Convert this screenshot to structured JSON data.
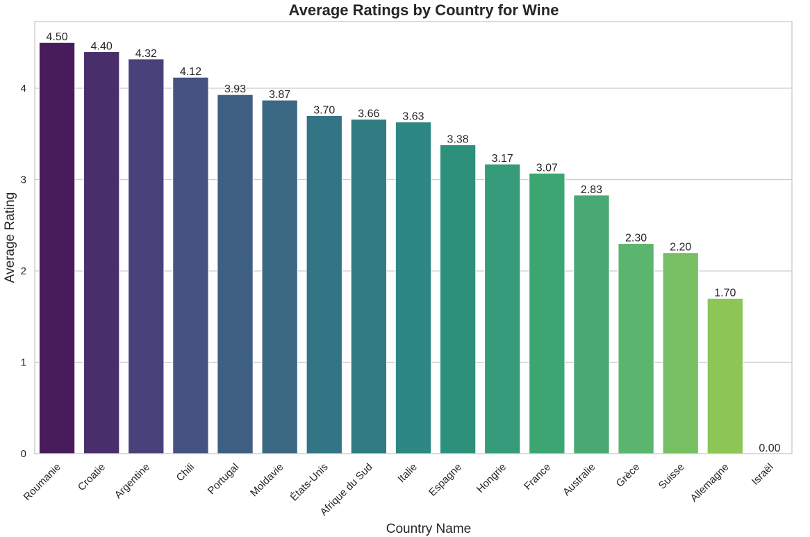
{
  "chart_data": {
    "type": "bar",
    "title": "Average Ratings by Country for Wine",
    "xlabel": "Country Name",
    "ylabel": "Average Rating",
    "categories": [
      "Roumanie",
      "Croatie",
      "Argentine",
      "Chili",
      "Portugal",
      "Moldavie",
      "États-Unis",
      "Afrique du Sud",
      "Italie",
      "Espagne",
      "Hongrie",
      "France",
      "Australie",
      "Grèce",
      "Suisse",
      "Allemagne",
      "Israël"
    ],
    "values": [
      4.5,
      4.4,
      4.32,
      4.12,
      3.93,
      3.87,
      3.7,
      3.66,
      3.63,
      3.38,
      3.17,
      3.07,
      2.83,
      2.3,
      2.2,
      1.7,
      0.0
    ],
    "value_labels": [
      "4.50",
      "4.40",
      "4.32",
      "4.12",
      "3.93",
      "3.87",
      "3.70",
      "3.66",
      "3.63",
      "3.38",
      "3.17",
      "3.07",
      "2.83",
      "2.30",
      "2.20",
      "1.70",
      "0.00"
    ],
    "colors": [
      "#481c5a",
      "#482f6c",
      "#48417a",
      "#465280",
      "#3f5f82",
      "#3b6883",
      "#337584",
      "#317c82",
      "#2d8782",
      "#2c907b",
      "#369b7a",
      "#3da572",
      "#48a974",
      "#5cb56e",
      "#76bf62",
      "#8dc557",
      "#a8c940"
    ],
    "yticks": [
      "0",
      "1",
      "2",
      "3",
      "4"
    ],
    "ytick_values": [
      0,
      1,
      2,
      3,
      4
    ],
    "ylim": [
      0,
      4.73
    ],
    "grid": "horizontal",
    "legend": "none"
  }
}
